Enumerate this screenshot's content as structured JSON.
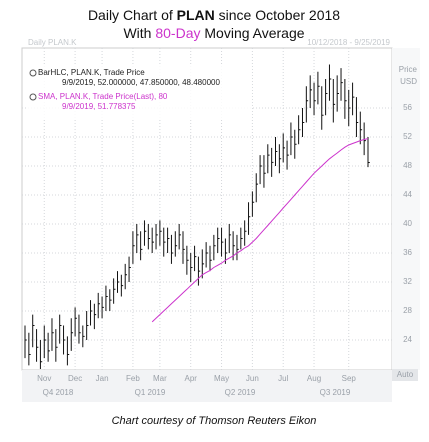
{
  "chart_data": {
    "type": "hlc",
    "title_parts": [
      "Daily Chart of ",
      "PLAN",
      " since October 2018"
    ],
    "subtitle_parts": [
      "With ",
      "80-Day",
      " Moving Average"
    ],
    "watermark": "Daily PLAN.K",
    "date_range": "10/12/2018 - 9/25/2019",
    "axis_label": [
      "Price",
      "USD"
    ],
    "auto_label": "Auto",
    "caption": "Chart courtesy of Thomson Reuters Eikon",
    "legend": [
      {
        "name": "BarHLC, PLAN.K, Trade Price",
        "detail": "9/9/2019, 52.000000, 47.850000, 48.480000",
        "color": "#222222"
      },
      {
        "name": "SMA, PLAN.K, Trade Price(Last), 80",
        "detail": "9/9/2019, 51.778375",
        "color": "#cc33cc"
      }
    ],
    "quarters": [
      "Q4 2018",
      "Q1 2019",
      "Q2 2019",
      "Q3 2019"
    ],
    "categories": [
      null,
      null,
      null,
      null,
      null,
      "Nov",
      null,
      null,
      null,
      null,
      null,
      null,
      null,
      "Dec",
      null,
      null,
      null,
      null,
      null,
      null,
      "Jan",
      null,
      null,
      null,
      null,
      null,
      null,
      null,
      "Feb",
      null,
      null,
      null,
      null,
      null,
      null,
      "Mar",
      null,
      null,
      null,
      null,
      null,
      null,
      null,
      "Apr",
      null,
      null,
      null,
      null,
      null,
      null,
      null,
      "May",
      null,
      null,
      null,
      null,
      null,
      null,
      null,
      "Jun",
      null,
      null,
      null,
      null,
      null,
      null,
      null,
      "Jul",
      null,
      null,
      null,
      null,
      null,
      null,
      null,
      "Aug",
      null,
      null,
      null,
      null,
      null,
      null,
      null,
      null,
      "Sep",
      null,
      null,
      null,
      null,
      null
    ],
    "high": [
      26,
      25,
      27.5,
      25.5,
      24,
      26,
      25,
      27,
      25.5,
      27.5,
      26,
      24.5,
      27,
      28.5,
      27.5,
      26,
      28,
      29.5,
      29,
      30.5,
      30,
      31.5,
      31,
      32.5,
      33.5,
      33,
      34.5,
      35.5,
      39,
      40,
      39,
      40.5,
      40,
      39.5,
      40,
      40.5,
      39.5,
      39.5,
      38.5,
      39,
      40,
      39,
      37,
      36,
      37,
      35.5,
      36.5,
      37.5,
      37,
      38.5,
      39.5,
      39.5,
      38,
      40,
      39,
      38.5,
      39.5,
      40.5,
      43,
      44.5,
      47,
      49.5,
      49.5,
      51,
      50.5,
      52,
      51,
      52.5,
      51.5,
      54,
      53,
      55,
      56,
      59,
      60.5,
      59.5,
      61,
      59,
      60,
      62,
      60,
      60.5,
      61.5,
      60,
      58.5,
      59.5,
      57.5,
      55.5,
      54,
      52
    ],
    "low": [
      21.5,
      20.5,
      23,
      21,
      20,
      21.5,
      21,
      22.5,
      21,
      23.5,
      22,
      20.5,
      22.5,
      24.5,
      23.5,
      23,
      24,
      26,
      25.5,
      27,
      27,
      28,
      28,
      29,
      30.5,
      30,
      31,
      32,
      34.5,
      36,
      35,
      37,
      36.5,
      36,
      36.5,
      37,
      35.5,
      36,
      34.5,
      35.5,
      36.5,
      34.5,
      33,
      32,
      33.5,
      31.5,
      32.5,
      34,
      33.5,
      35,
      36,
      35.5,
      34.5,
      36,
      35,
      35,
      36.5,
      37,
      38.5,
      41,
      43,
      45.5,
      45,
      47,
      46.5,
      48,
      47,
      48.5,
      47.5,
      49.5,
      49,
      51,
      52,
      54,
      56,
      55,
      56.5,
      53,
      55,
      57,
      54,
      55.5,
      57,
      54.5,
      53.5,
      55,
      52,
      51,
      49.5,
      47.85
    ],
    "close": [
      24,
      22,
      26,
      23,
      21,
      24,
      22.5,
      25,
      23,
      26,
      24,
      22,
      25,
      27,
      25,
      24.5,
      26,
      28,
      27.5,
      29,
      28.5,
      30,
      29.5,
      31,
      32,
      31.5,
      33,
      34,
      37,
      38.5,
      36.5,
      39,
      38,
      37.5,
      38.5,
      39,
      37.5,
      38,
      36,
      37,
      38.5,
      36.5,
      35,
      34,
      35.5,
      33.5,
      34.5,
      36,
      35,
      37,
      38,
      37.5,
      36,
      38.5,
      37,
      36.5,
      38,
      39,
      41,
      43,
      45.5,
      48,
      47,
      49.5,
      48.5,
      50,
      49,
      50.5,
      49.5,
      52,
      51,
      53,
      54,
      57,
      58.5,
      57,
      59,
      55,
      58,
      60,
      56.5,
      58,
      59.5,
      57,
      56,
      57.5,
      54,
      53,
      51.5,
      48.48
    ],
    "bar_color": "#111111",
    "ma": {
      "name": "80-Day Moving Average",
      "color": "#cc33cc",
      "values": [
        null,
        null,
        null,
        null,
        null,
        null,
        null,
        null,
        null,
        null,
        null,
        null,
        null,
        null,
        null,
        null,
        null,
        null,
        null,
        null,
        null,
        null,
        null,
        null,
        null,
        null,
        null,
        null,
        null,
        null,
        null,
        null,
        null,
        26.5,
        27,
        27.5,
        28,
        28.5,
        29,
        29.5,
        30,
        30.5,
        31,
        31.5,
        32,
        32.5,
        33,
        33.3,
        33.6,
        34,
        34.3,
        34.6,
        35,
        35.3,
        35.6,
        36,
        36.3,
        36.7,
        37,
        37.5,
        38,
        38.6,
        39.2,
        39.8,
        40.4,
        41,
        41.6,
        42.2,
        42.8,
        43.4,
        44,
        44.6,
        45.2,
        45.8,
        46.4,
        47,
        47.5,
        48,
        48.5,
        49,
        49.4,
        49.8,
        50.2,
        50.6,
        50.9,
        51.1,
        51.3,
        51.5,
        51.65,
        51.78
      ]
    },
    "ylim": [
      20,
      64
    ],
    "yticks": [
      24,
      28,
      32,
      36,
      40,
      44,
      48,
      52,
      56
    ],
    "grid": true
  }
}
